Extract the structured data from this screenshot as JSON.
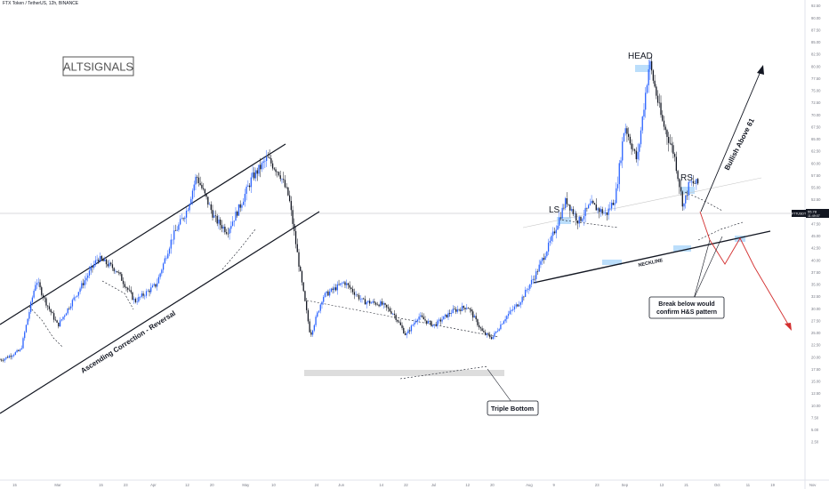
{
  "header": {
    "symbol_line": "FTX Token / TetherUS, 12h, BINANCE"
  },
  "logo": {
    "text": "ALTSIGNALS"
  },
  "price_tag": {
    "symbol": "FTTUSDT",
    "value": "55.78",
    "countdown": "11:49:07"
  },
  "colors": {
    "up_candle": "#2962ff",
    "down_candle": "#131722",
    "price_line": "#787b86",
    "bearish_arrow": "#d32f2f",
    "pattern_highlight": "#bbdefb"
  },
  "chart_data": {
    "type": "candlestick",
    "title": "FTX Token / TetherUS, 12h, BINANCE",
    "ylim": [
      0,
      100
    ],
    "y_ticks": [
      "97.50",
      "95.00",
      "92.50",
      "90.00",
      "87.50",
      "85.00",
      "82.50",
      "80.00",
      "77.50",
      "75.00",
      "72.50",
      "70.00",
      "67.50",
      "65.00",
      "62.50",
      "60.00",
      "57.50",
      "55.00",
      "52.50",
      "50.00",
      "47.50",
      "45.00",
      "42.50",
      "40.00",
      "37.50",
      "35.00",
      "32.50",
      "30.00",
      "27.50",
      "25.00",
      "22.50",
      "20.00",
      "17.50",
      "15.00",
      "12.50",
      "10.00",
      "7.50",
      "5.00",
      "2.50"
    ],
    "x_ticks": [
      "15",
      "Mar",
      "15",
      "23",
      "Apr",
      "12",
      "20",
      "May",
      "10",
      "24",
      "Jun",
      "14",
      "22",
      "Jul",
      "12",
      "20",
      "Aug",
      "9",
      "23",
      "Sep",
      "13",
      "21",
      "Oct",
      "11",
      "19",
      "Nov"
    ],
    "price_points": [
      {
        "d": "Feb 11",
        "p": 19.5
      },
      {
        "d": "Feb 17",
        "p": 21.5
      },
      {
        "d": "Feb 22",
        "p": 36.0
      },
      {
        "d": "Feb 25",
        "p": 31.5
      },
      {
        "d": "Mar 1",
        "p": 26.5
      },
      {
        "d": "Mar 8",
        "p": 34.0
      },
      {
        "d": "Mar 14",
        "p": 40.5
      },
      {
        "d": "Mar 20",
        "p": 38.0
      },
      {
        "d": "Mar 26",
        "p": 31.5
      },
      {
        "d": "Apr 2",
        "p": 35.0
      },
      {
        "d": "Apr 7",
        "p": 44.5
      },
      {
        "d": "Apr 12",
        "p": 50.5
      },
      {
        "d": "Apr 15",
        "p": 57.5
      },
      {
        "d": "Apr 21",
        "p": 48.5
      },
      {
        "d": "Apr 25",
        "p": 46.0
      },
      {
        "d": "Apr 29",
        "p": 51.0
      },
      {
        "d": "May 3",
        "p": 57.0
      },
      {
        "d": "May 8",
        "p": 61.0
      },
      {
        "d": "May 12",
        "p": 58.0
      },
      {
        "d": "May 15",
        "p": 53.0
      },
      {
        "d": "May 19",
        "p": 36.0
      },
      {
        "d": "May 22",
        "p": 24.5
      },
      {
        "d": "May 26",
        "p": 32.5
      },
      {
        "d": "Jun 2",
        "p": 35.5
      },
      {
        "d": "Jun 8",
        "p": 31.5
      },
      {
        "d": "Jun 14",
        "p": 31.0
      },
      {
        "d": "Jun 18",
        "p": 29.0
      },
      {
        "d": "Jun 22",
        "p": 24.5
      },
      {
        "d": "Jun 26",
        "p": 28.5
      },
      {
        "d": "Jul 1",
        "p": 26.5
      },
      {
        "d": "Jul 7",
        "p": 29.5
      },
      {
        "d": "Jul 12",
        "p": 30.5
      },
      {
        "d": "Jul 17",
        "p": 25.0
      },
      {
        "d": "Jul 20",
        "p": 24.0
      },
      {
        "d": "Jul 24",
        "p": 28.0
      },
      {
        "d": "Jul 29",
        "p": 31.5
      },
      {
        "d": "Aug 3",
        "p": 37.0
      },
      {
        "d": "Aug 8",
        "p": 44.0
      },
      {
        "d": "Aug 13",
        "p": 52.5
      },
      {
        "d": "Aug 17",
        "p": 48.0
      },
      {
        "d": "Aug 21",
        "p": 51.5
      },
      {
        "d": "Aug 26",
        "p": 49.5
      },
      {
        "d": "Aug 29",
        "p": 53.0
      },
      {
        "d": "Sep 1",
        "p": 68.0
      },
      {
        "d": "Sep 5",
        "p": 60.5
      },
      {
        "d": "Sep 9",
        "p": 81.0
      },
      {
        "d": "Sep 13",
        "p": 69.0
      },
      {
        "d": "Sep 17",
        "p": 62.0
      },
      {
        "d": "Sep 20",
        "p": 51.0
      },
      {
        "d": "Sep 22",
        "p": 56.0
      },
      {
        "d": "Sep 25",
        "p": 55.78
      }
    ],
    "channel_label": "Ascending Correction - Reversal",
    "annotations": [
      {
        "text": "HEAD"
      },
      {
        "text": "LS"
      },
      {
        "text": "RS"
      },
      {
        "text": "NECKLINE"
      },
      {
        "text": "Bullish Above 61"
      },
      {
        "text": "Triple Bottom"
      },
      {
        "text": "Break below would"
      },
      {
        "text": "confirm H&S pattern"
      }
    ],
    "current_price": 55.78
  }
}
